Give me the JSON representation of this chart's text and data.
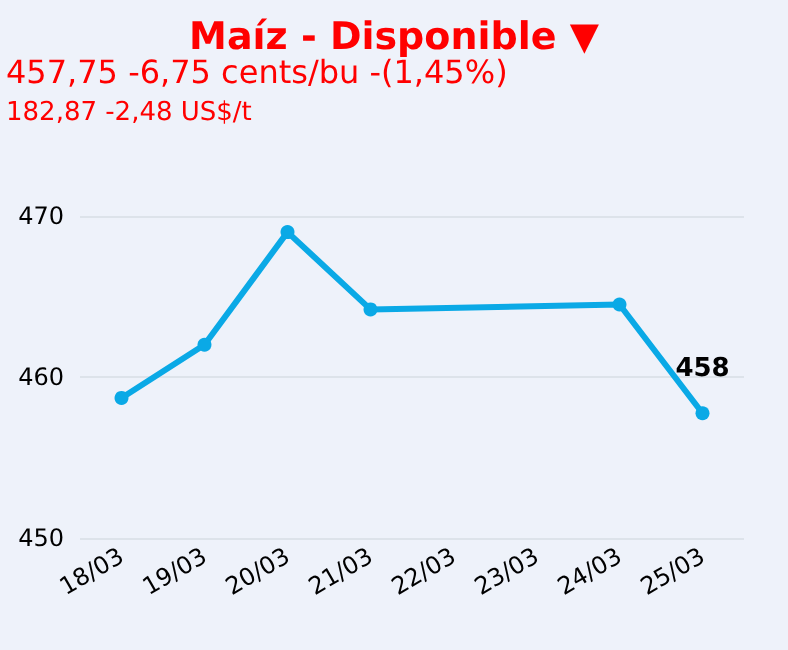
{
  "chart_data": {
    "type": "line",
    "title": "Maíz - Disponible ▼",
    "subtitle": "457,75 -6,75 cents/bu -(1,45%)",
    "annotations": [
      "182,87 -2,48 US$/t"
    ],
    "categories": [
      "18/03",
      "19/03",
      "20/03",
      "21/03",
      "22/03",
      "23/03",
      "24/03",
      "25/03"
    ],
    "series": [
      {
        "color": "#0aa9e6",
        "values": [
          458.7,
          462,
          469,
          464.2,
          null,
          null,
          464.5,
          457.75
        ],
        "value_labels": [
          null,
          null,
          null,
          null,
          null,
          null,
          null,
          "458"
        ]
      }
    ],
    "ylim": [
      450,
      470
    ],
    "yticks": [
      450,
      460,
      470
    ],
    "grid": "y",
    "marker": "circle",
    "line_style": "solid"
  }
}
